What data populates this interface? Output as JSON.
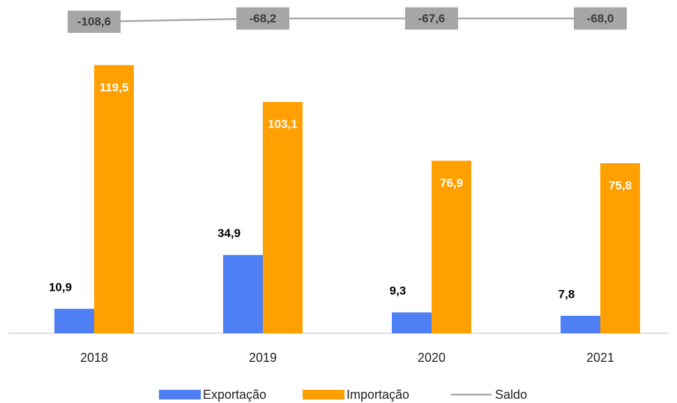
{
  "chart_data": {
    "type": "bar",
    "categories": [
      "2018",
      "2019",
      "2020",
      "2021"
    ],
    "ylim": [
      0,
      142
    ],
    "y2lim": [
      -4000,
      -20
    ],
    "series": [
      {
        "name": "Exportação",
        "type": "bar",
        "color": "#4f7ff5",
        "values": [
          10.9,
          34.9,
          9.3,
          7.8
        ],
        "value_labels": [
          "10,9",
          "34,9",
          "9,3",
          "7,8"
        ]
      },
      {
        "name": "Importação",
        "type": "bar",
        "color": "#ffa000",
        "values": [
          119.5,
          103.1,
          76.9,
          75.8
        ],
        "value_labels": [
          "119,5",
          "103,1",
          "76,9",
          "75,8"
        ]
      },
      {
        "name": "Saldo",
        "type": "line",
        "axis": "y2",
        "color": "#a6a6a6",
        "values": [
          -108.6,
          -68.2,
          -67.6,
          -68.0
        ],
        "value_labels": [
          "-108,6",
          "-68,2",
          "-67,6",
          "-68,0"
        ]
      }
    ]
  }
}
